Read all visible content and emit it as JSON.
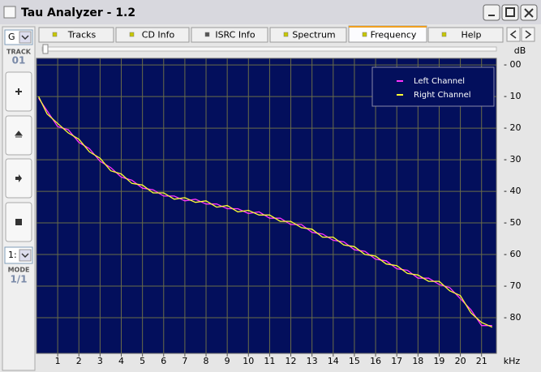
{
  "window": {
    "title": "Tau Analyzer - 1.2"
  },
  "sidebar": {
    "drive": "G",
    "track_label": "TRACK",
    "track": "01",
    "speed": "1:",
    "mode_label": "MODE",
    "mode": "1/1"
  },
  "tabs": [
    "Tracks",
    "CD Info",
    "ISRC Info",
    "Spectrum",
    "Frequency",
    "Help"
  ],
  "active_tab": 4,
  "chart_data": {
    "type": "line",
    "x_label": "kHz",
    "y_label": "dB",
    "x": [
      0.1,
      0.5,
      1,
      1.5,
      2,
      2.5,
      3,
      3.5,
      4,
      4.5,
      5,
      5.5,
      6,
      6.5,
      7,
      7.5,
      8,
      8.5,
      9,
      9.5,
      10,
      10.5,
      11,
      11.5,
      12,
      12.5,
      13,
      13.5,
      14,
      14.5,
      15,
      15.5,
      16,
      16.5,
      17,
      17.5,
      18,
      18.5,
      19,
      19.5,
      20,
      20.5,
      21,
      21.5
    ],
    "series": [
      {
        "name": "Left Channel",
        "color": "#ff33ff",
        "values": [
          -10.5,
          -14.5,
          -19.5,
          -20.5,
          -24.5,
          -26.5,
          -30.5,
          -32.5,
          -35.5,
          -36.5,
          -39,
          -39.5,
          -41.5,
          -41.5,
          -43,
          -42.5,
          -44,
          -44,
          -45.5,
          -45.5,
          -47,
          -46.5,
          -48.5,
          -48.5,
          -50.5,
          -50.5,
          -53,
          -53.5,
          -55.5,
          -56,
          -58.5,
          -59,
          -61.5,
          -62,
          -64.5,
          -65,
          -67.5,
          -67.5,
          -69.5,
          -70.5,
          -74,
          -77.5,
          -82.5,
          -82.5
        ]
      },
      {
        "name": "Right Channel",
        "color": "#ffff33",
        "values": [
          -10,
          -15.5,
          -18.5,
          -21.5,
          -23.5,
          -27.5,
          -29.5,
          -33.5,
          -34.5,
          -37.5,
          -38,
          -40.5,
          -40.5,
          -42.5,
          -42,
          -43.5,
          -43,
          -45,
          -44.5,
          -46.5,
          -46,
          -47.5,
          -47.5,
          -49.5,
          -49.5,
          -51.5,
          -52,
          -54.5,
          -54.5,
          -57,
          -57.5,
          -60,
          -60.5,
          -63,
          -63.5,
          -66,
          -66.5,
          -68.5,
          -68.5,
          -71.5,
          -73,
          -78.5,
          -81.5,
          -83
        ]
      }
    ],
    "xlim": [
      0,
      21.7
    ],
    "ylim": [
      -91.3,
      2.1
    ],
    "xticks": [
      1,
      2,
      3,
      4,
      5,
      6,
      7,
      8,
      9,
      10,
      11,
      12,
      13,
      14,
      15,
      16,
      17,
      18,
      19,
      20,
      21
    ],
    "yticks": [
      {
        "value": 0,
        "label": "- 00"
      },
      {
        "value": -10,
        "label": "- 10"
      },
      {
        "value": -20,
        "label": "- 20"
      },
      {
        "value": -30,
        "label": "- 30"
      },
      {
        "value": -40,
        "label": "- 40"
      },
      {
        "value": -50,
        "label": "- 50"
      },
      {
        "value": -60,
        "label": "- 60"
      },
      {
        "value": -70,
        "label": "- 70"
      },
      {
        "value": -80,
        "label": "- 80"
      }
    ],
    "grid": true,
    "legend": "top-right"
  }
}
